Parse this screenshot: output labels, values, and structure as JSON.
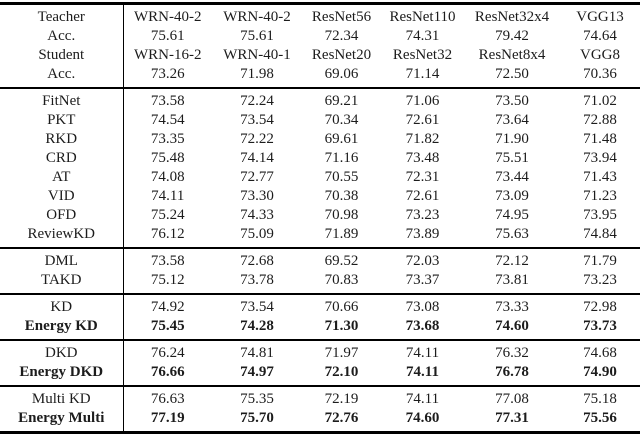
{
  "table": {
    "description": "Knowledge distillation accuracy comparison table",
    "colors": {
      "text": "#1c1c1c",
      "rule": "#000000",
      "background": "#ffffff"
    },
    "header": {
      "rows": [
        {
          "label": "Teacher",
          "values": [
            "WRN-40-2",
            "WRN-40-2",
            "ResNet56",
            "ResNet110",
            "ResNet32x4",
            "VGG13"
          ]
        },
        {
          "label": "Acc.",
          "values": [
            "75.61",
            "75.61",
            "72.34",
            "74.31",
            "79.42",
            "74.64"
          ]
        },
        {
          "label": "Student",
          "values": [
            "WRN-16-2",
            "WRN-40-1",
            "ResNet20",
            "ResNet32",
            "ResNet8x4",
            "VGG8"
          ]
        },
        {
          "label": "Acc.",
          "values": [
            "73.26",
            "71.98",
            "69.06",
            "71.14",
            "72.50",
            "70.36"
          ]
        }
      ]
    },
    "sections": [
      {
        "rows": [
          {
            "label": "FitNet",
            "bold": false,
            "values": [
              "73.58",
              "72.24",
              "69.21",
              "71.06",
              "73.50",
              "71.02"
            ]
          },
          {
            "label": "PKT",
            "bold": false,
            "values": [
              "74.54",
              "73.54",
              "70.34",
              "72.61",
              "73.64",
              "72.88"
            ]
          },
          {
            "label": "RKD",
            "bold": false,
            "values": [
              "73.35",
              "72.22",
              "69.61",
              "71.82",
              "71.90",
              "71.48"
            ]
          },
          {
            "label": "CRD",
            "bold": false,
            "values": [
              "75.48",
              "74.14",
              "71.16",
              "73.48",
              "75.51",
              "73.94"
            ]
          },
          {
            "label": "AT",
            "bold": false,
            "values": [
              "74.08",
              "72.77",
              "70.55",
              "72.31",
              "73.44",
              "71.43"
            ]
          },
          {
            "label": "VID",
            "bold": false,
            "values": [
              "74.11",
              "73.30",
              "70.38",
              "72.61",
              "73.09",
              "71.23"
            ]
          },
          {
            "label": "OFD",
            "bold": false,
            "values": [
              "75.24",
              "74.33",
              "70.98",
              "73.23",
              "74.95",
              "73.95"
            ]
          },
          {
            "label": "ReviewKD",
            "bold": false,
            "values": [
              "76.12",
              "75.09",
              "71.89",
              "73.89",
              "75.63",
              "74.84"
            ]
          }
        ]
      },
      {
        "rows": [
          {
            "label": "DML",
            "bold": false,
            "values": [
              "73.58",
              "72.68",
              "69.52",
              "72.03",
              "72.12",
              "71.79"
            ]
          },
          {
            "label": "TAKD",
            "bold": false,
            "values": [
              "75.12",
              "73.78",
              "70.83",
              "73.37",
              "73.81",
              "73.23"
            ]
          }
        ]
      },
      {
        "rows": [
          {
            "label": "KD",
            "bold": false,
            "values": [
              "74.92",
              "73.54",
              "70.66",
              "73.08",
              "73.33",
              "72.98"
            ]
          },
          {
            "label": "Energy KD",
            "bold": true,
            "values": [
              "75.45",
              "74.28",
              "71.30",
              "73.68",
              "74.60",
              "73.73"
            ]
          }
        ]
      },
      {
        "rows": [
          {
            "label": "DKD",
            "bold": false,
            "values": [
              "76.24",
              "74.81",
              "71.97",
              "74.11",
              "76.32",
              "74.68"
            ]
          },
          {
            "label": "Energy DKD",
            "bold": true,
            "values": [
              "76.66",
              "74.97",
              "72.10",
              "74.11",
              "76.78",
              "74.90"
            ]
          }
        ]
      },
      {
        "rows": [
          {
            "label": "Multi KD",
            "bold": false,
            "values": [
              "76.63",
              "75.35",
              "72.19",
              "74.11",
              "77.08",
              "75.18"
            ]
          },
          {
            "label": "Energy Multi",
            "bold": true,
            "values": [
              "77.19",
              "75.70",
              "72.76",
              "74.60",
              "77.31",
              "75.56"
            ]
          }
        ]
      }
    ]
  }
}
